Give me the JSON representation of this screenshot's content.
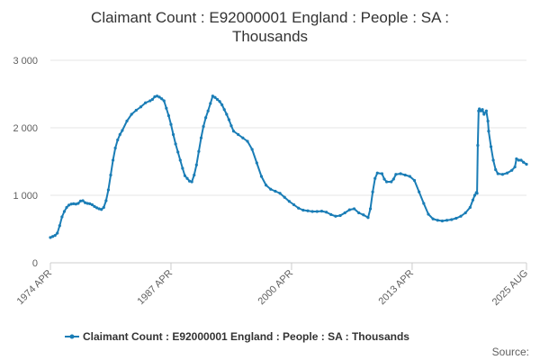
{
  "chart_data": {
    "type": "line",
    "title_lines": [
      "Claimant Count : E92000001 England : People : SA :",
      "Thousands"
    ],
    "y_ticks": [
      "0",
      "1 000",
      "2 000",
      "3 000"
    ],
    "ylim": [
      0,
      3000
    ],
    "x_tick_labels": [
      "1974 APR",
      "1987 APR",
      "2000 APR",
      "2013 APR",
      "2025 AUG"
    ],
    "x_tick_dates": [
      1974.25,
      1987.25,
      2000.25,
      2013.25,
      2025.58
    ],
    "grid": "horizontal",
    "legend": "bottom",
    "series": [
      {
        "name": "Claimant Count : E92000001 England : People : SA : Thousands",
        "color": "#1a7db6",
        "points": [
          [
            1974.25,
            375
          ],
          [
            1974.5,
            390
          ],
          [
            1974.75,
            405
          ],
          [
            1975.0,
            440
          ],
          [
            1975.25,
            550
          ],
          [
            1975.5,
            680
          ],
          [
            1975.75,
            760
          ],
          [
            1976.0,
            820
          ],
          [
            1976.25,
            855
          ],
          [
            1976.5,
            870
          ],
          [
            1976.75,
            875
          ],
          [
            1977.0,
            870
          ],
          [
            1977.25,
            880
          ],
          [
            1977.5,
            915
          ],
          [
            1977.75,
            920
          ],
          [
            1978.0,
            890
          ],
          [
            1978.25,
            880
          ],
          [
            1978.5,
            875
          ],
          [
            1978.75,
            860
          ],
          [
            1979.0,
            835
          ],
          [
            1979.25,
            815
          ],
          [
            1979.5,
            800
          ],
          [
            1979.75,
            790
          ],
          [
            1980.0,
            820
          ],
          [
            1980.25,
            920
          ],
          [
            1980.5,
            1080
          ],
          [
            1980.75,
            1300
          ],
          [
            1981.0,
            1520
          ],
          [
            1981.25,
            1700
          ],
          [
            1981.5,
            1820
          ],
          [
            1981.75,
            1900
          ],
          [
            1982.0,
            1960
          ],
          [
            1982.5,
            2100
          ],
          [
            1983.0,
            2200
          ],
          [
            1983.5,
            2260
          ],
          [
            1984.0,
            2310
          ],
          [
            1984.5,
            2370
          ],
          [
            1985.0,
            2400
          ],
          [
            1985.25,
            2420
          ],
          [
            1985.5,
            2460
          ],
          [
            1985.75,
            2470
          ],
          [
            1986.0,
            2455
          ],
          [
            1986.25,
            2430
          ],
          [
            1986.5,
            2400
          ],
          [
            1986.75,
            2290
          ],
          [
            1987.0,
            2180
          ],
          [
            1987.25,
            2050
          ],
          [
            1987.5,
            1900
          ],
          [
            1987.75,
            1760
          ],
          [
            1988.0,
            1640
          ],
          [
            1988.25,
            1520
          ],
          [
            1988.5,
            1400
          ],
          [
            1988.75,
            1290
          ],
          [
            1989.0,
            1250
          ],
          [
            1989.25,
            1210
          ],
          [
            1989.5,
            1200
          ],
          [
            1989.75,
            1300
          ],
          [
            1990.0,
            1450
          ],
          [
            1990.25,
            1650
          ],
          [
            1990.5,
            1850
          ],
          [
            1990.75,
            2020
          ],
          [
            1991.0,
            2150
          ],
          [
            1991.25,
            2250
          ],
          [
            1991.5,
            2360
          ],
          [
            1991.75,
            2470
          ],
          [
            1992.0,
            2450
          ],
          [
            1992.25,
            2420
          ],
          [
            1992.5,
            2390
          ],
          [
            1992.75,
            2340
          ],
          [
            1993.0,
            2270
          ],
          [
            1993.25,
            2200
          ],
          [
            1993.5,
            2120
          ],
          [
            1993.75,
            2030
          ],
          [
            1994.0,
            1950
          ],
          [
            1994.5,
            1900
          ],
          [
            1995.0,
            1850
          ],
          [
            1995.5,
            1800
          ],
          [
            1996.0,
            1680
          ],
          [
            1996.5,
            1480
          ],
          [
            1997.0,
            1280
          ],
          [
            1997.5,
            1150
          ],
          [
            1998.0,
            1090
          ],
          [
            1998.5,
            1060
          ],
          [
            1999.0,
            1030
          ],
          [
            1999.5,
            970
          ],
          [
            2000.0,
            910
          ],
          [
            2000.5,
            860
          ],
          [
            2001.0,
            810
          ],
          [
            2001.5,
            780
          ],
          [
            2002.0,
            770
          ],
          [
            2002.5,
            760
          ],
          [
            2003.0,
            760
          ],
          [
            2003.5,
            765
          ],
          [
            2004.0,
            750
          ],
          [
            2004.5,
            715
          ],
          [
            2005.0,
            690
          ],
          [
            2005.5,
            700
          ],
          [
            2006.0,
            740
          ],
          [
            2006.5,
            785
          ],
          [
            2007.0,
            800
          ],
          [
            2007.5,
            740
          ],
          [
            2008.0,
            710
          ],
          [
            2008.5,
            670
          ],
          [
            2008.75,
            800
          ],
          [
            2009.0,
            1050
          ],
          [
            2009.25,
            1250
          ],
          [
            2009.5,
            1330
          ],
          [
            2010.0,
            1320
          ],
          [
            2010.25,
            1240
          ],
          [
            2010.5,
            1200
          ],
          [
            2011.0,
            1200
          ],
          [
            2011.25,
            1240
          ],
          [
            2011.5,
            1310
          ],
          [
            2012.0,
            1320
          ],
          [
            2012.5,
            1300
          ],
          [
            2013.0,
            1280
          ],
          [
            2013.5,
            1220
          ],
          [
            2014.0,
            1050
          ],
          [
            2014.5,
            880
          ],
          [
            2015.0,
            720
          ],
          [
            2015.5,
            650
          ],
          [
            2016.0,
            630
          ],
          [
            2016.5,
            620
          ],
          [
            2017.0,
            630
          ],
          [
            2017.5,
            640
          ],
          [
            2018.0,
            660
          ],
          [
            2018.5,
            690
          ],
          [
            2019.0,
            740
          ],
          [
            2019.5,
            820
          ],
          [
            2019.8,
            930
          ],
          [
            2020.0,
            1000
          ],
          [
            2020.17,
            1040
          ],
          [
            2020.25,
            1030
          ],
          [
            2020.33,
            1740
          ],
          [
            2020.42,
            2250
          ],
          [
            2020.5,
            2280
          ],
          [
            2020.67,
            2250
          ],
          [
            2020.83,
            2270
          ],
          [
            2021.0,
            2200
          ],
          [
            2021.25,
            2250
          ],
          [
            2021.42,
            2100
          ],
          [
            2021.5,
            1950
          ],
          [
            2021.75,
            1720
          ],
          [
            2022.0,
            1520
          ],
          [
            2022.25,
            1380
          ],
          [
            2022.5,
            1320
          ],
          [
            2023.0,
            1310
          ],
          [
            2023.5,
            1330
          ],
          [
            2024.0,
            1370
          ],
          [
            2024.33,
            1420
          ],
          [
            2024.5,
            1540
          ],
          [
            2024.75,
            1520
          ],
          [
            2025.0,
            1520
          ],
          [
            2025.25,
            1490
          ],
          [
            2025.58,
            1460
          ]
        ]
      }
    ],
    "credit": "Source:"
  }
}
